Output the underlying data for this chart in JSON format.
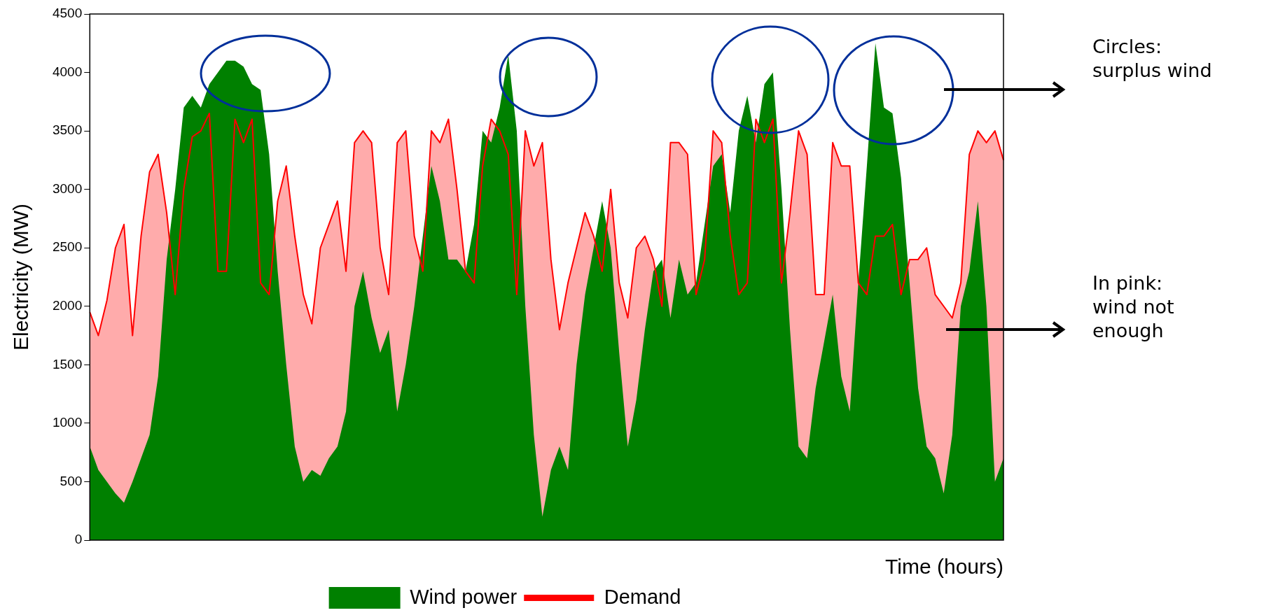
{
  "chart_data": {
    "type": "area",
    "ylabel": "Electricity (MW)",
    "xlabel": "Time (hours)",
    "categories": [
      null,
      null,
      null,
      null,
      null,
      null,
      null,
      null,
      null,
      null,
      null,
      null,
      null,
      null,
      null,
      null,
      null,
      null,
      null,
      null,
      null,
      null,
      null,
      null,
      null,
      null,
      null,
      null,
      null,
      null,
      null,
      null,
      null,
      null,
      null,
      null,
      null,
      null,
      null,
      null,
      null,
      null,
      null,
      null,
      null,
      null,
      null,
      null,
      null,
      null,
      null,
      null,
      null,
      null,
      null,
      null,
      null,
      null,
      null,
      null,
      null,
      null,
      null,
      null,
      null,
      null,
      null,
      null,
      null,
      null,
      null,
      null,
      null,
      null,
      null,
      null,
      null,
      null,
      null,
      null,
      null,
      null,
      null,
      null,
      null,
      null,
      null,
      null,
      null,
      null,
      null,
      null,
      null,
      null,
      null,
      null,
      null,
      null,
      null,
      null,
      null,
      null,
      null,
      null,
      null,
      null,
      null,
      null
    ],
    "series": [
      {
        "name": "Wind power",
        "color": "#008000",
        "values": [
          800,
          600,
          500,
          400,
          320,
          500,
          700,
          900,
          1400,
          2400,
          3000,
          3700,
          3800,
          3700,
          3900,
          4000,
          4100,
          4100,
          4050,
          3900,
          3850,
          3300,
          2300,
          1500,
          800,
          500,
          600,
          550,
          700,
          800,
          1100,
          2000,
          2300,
          1900,
          1600,
          1800,
          1100,
          1500,
          2000,
          2600,
          3200,
          2900,
          2400,
          2400,
          2300,
          2700,
          3500,
          3400,
          3700,
          4150,
          3500,
          2000,
          900,
          200,
          600,
          800,
          600,
          1500,
          2100,
          2500,
          2900,
          2500,
          1600,
          800,
          1200,
          1800,
          2300,
          2400,
          1900,
          2400,
          2100,
          2200,
          2700,
          3200,
          3300,
          2800,
          3500,
          3800,
          3400,
          3900,
          4000,
          3000,
          1800,
          800,
          700,
          1300,
          1700,
          2100,
          1400,
          1100,
          2200,
          3200,
          4250,
          3700,
          3650,
          3100,
          2200,
          1300,
          800,
          700,
          400,
          900,
          2000,
          2300,
          2900,
          2000,
          500,
          700
        ]
      },
      {
        "name": "Demand",
        "type": "area",
        "color": "#ff0000",
        "values": [
          1950,
          1750,
          2050,
          2500,
          2700,
          1750,
          2600,
          3150,
          3300,
          2800,
          2100,
          3000,
          3450,
          3500,
          3650,
          2300,
          2300,
          3600,
          3400,
          3600,
          2200,
          2100,
          2900,
          3200,
          2600,
          2100,
          1850,
          2500,
          2700,
          2900,
          2300,
          3400,
          3500,
          3400,
          2500,
          2100,
          3400,
          3500,
          2600,
          2300,
          3500,
          3400,
          3600,
          3000,
          2300,
          2200,
          3200,
          3600,
          3500,
          3300,
          2100,
          3500,
          3200,
          3400,
          2400,
          1800,
          2200,
          2500,
          2800,
          2600,
          2300,
          3000,
          2200,
          1900,
          2500,
          2600,
          2400,
          2000,
          3400,
          3400,
          3300,
          2100,
          2400,
          3500,
          3400,
          2600,
          2100,
          2200,
          3600,
          3400,
          3600,
          2200,
          2800,
          3500,
          3300,
          2100,
          2100,
          3400,
          3200,
          3200,
          2200,
          2100,
          2600,
          2600,
          2700,
          2100,
          2400,
          2400,
          2500,
          2100,
          2000,
          1900,
          2200,
          3300,
          3500,
          3400,
          3500,
          3250
        ]
      }
    ],
    "ylim": [
      0,
      4500
    ],
    "yticks": [
      0,
      500,
      1000,
      1500,
      2000,
      2500,
      3000,
      3500,
      4000,
      4500
    ],
    "grid": false,
    "legend": "bottom",
    "tick_labels": "y",
    "marker": "none",
    "line_style": "solid",
    "annotations": [
      "Circles: surplus wind",
      "In pink: wind not enough"
    ]
  }
}
